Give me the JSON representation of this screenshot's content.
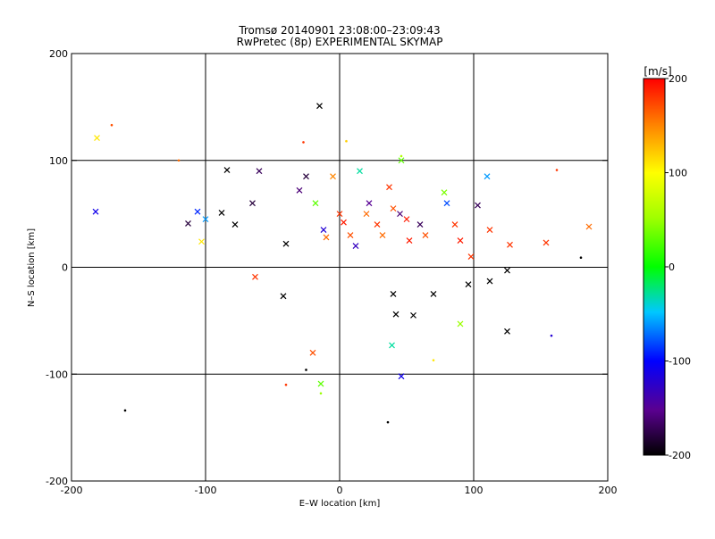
{
  "chart_data": {
    "type": "scatter",
    "title": "Tromsø 20140901 23:08:00–23:09:43",
    "subtitle": "RwPretec (8p) EXPERIMENTAL SKYMAP",
    "xlabel": "E–W location [km]",
    "ylabel": "N–S location [km]",
    "xlim": [
      -200,
      200
    ],
    "ylim": [
      -200,
      200
    ],
    "xticks": [
      -200,
      -100,
      0,
      100,
      200
    ],
    "yticks": [
      -200,
      -100,
      0,
      100,
      200
    ],
    "grid_lines_x": [
      -100,
      0,
      100
    ],
    "grid_lines_y": [
      -100,
      0,
      100
    ],
    "colorbar": {
      "label": "[m/s]",
      "min": -200,
      "max": 200,
      "ticks": [
        200,
        100,
        0,
        -100,
        -200
      ]
    },
    "marker_style": "small dots and crosses",
    "points": [
      {
        "x": -182,
        "y": 52,
        "v": -110,
        "m": "x"
      },
      {
        "x": -181,
        "y": 121,
        "v": 110,
        "m": "x"
      },
      {
        "x": -170,
        "y": 133,
        "v": 170,
        "m": "."
      },
      {
        "x": -160,
        "y": -134,
        "v": -200,
        "m": "."
      },
      {
        "x": -113,
        "y": 41,
        "v": -180,
        "m": "x"
      },
      {
        "x": -106,
        "y": 52,
        "v": -90,
        "m": "x"
      },
      {
        "x": -103,
        "y": 24,
        "v": 110,
        "m": "x"
      },
      {
        "x": -100,
        "y": 45,
        "v": -60,
        "m": "x"
      },
      {
        "x": -88,
        "y": 51,
        "v": -200,
        "m": "x"
      },
      {
        "x": -84,
        "y": 91,
        "v": -200,
        "m": "x"
      },
      {
        "x": -78,
        "y": 40,
        "v": -200,
        "m": "x"
      },
      {
        "x": -65,
        "y": 60,
        "v": -180,
        "m": "x"
      },
      {
        "x": -60,
        "y": 90,
        "v": -170,
        "m": "x"
      },
      {
        "x": -63,
        "y": -9,
        "v": 180,
        "m": "x"
      },
      {
        "x": -42,
        "y": -27,
        "v": -200,
        "m": "x"
      },
      {
        "x": -40,
        "y": 22,
        "v": -200,
        "m": "x"
      },
      {
        "x": -30,
        "y": 72,
        "v": -160,
        "m": "x"
      },
      {
        "x": -25,
        "y": 85,
        "v": -180,
        "m": "x"
      },
      {
        "x": -20,
        "y": -80,
        "v": 170,
        "m": "x"
      },
      {
        "x": -18,
        "y": 60,
        "v": 30,
        "m": "x"
      },
      {
        "x": -15,
        "y": 151,
        "v": -200,
        "m": "x"
      },
      {
        "x": -14,
        "y": -109,
        "v": 30,
        "m": "x"
      },
      {
        "x": -12,
        "y": 35,
        "v": -120,
        "m": "x"
      },
      {
        "x": -10,
        "y": 28,
        "v": 160,
        "m": "x"
      },
      {
        "x": -5,
        "y": 85,
        "v": 150,
        "m": "x"
      },
      {
        "x": 0,
        "y": 50,
        "v": 180,
        "m": "x"
      },
      {
        "x": 3,
        "y": 42,
        "v": 190,
        "m": "x"
      },
      {
        "x": 8,
        "y": 30,
        "v": 170,
        "m": "x"
      },
      {
        "x": 12,
        "y": 20,
        "v": -130,
        "m": "x"
      },
      {
        "x": 15,
        "y": 90,
        "v": -30,
        "m": "x"
      },
      {
        "x": 20,
        "y": 50,
        "v": 160,
        "m": "x"
      },
      {
        "x": 22,
        "y": 60,
        "v": -150,
        "m": "x"
      },
      {
        "x": 28,
        "y": 40,
        "v": 180,
        "m": "x"
      },
      {
        "x": 32,
        "y": 30,
        "v": 160,
        "m": "x"
      },
      {
        "x": 37,
        "y": 75,
        "v": 180,
        "m": "x"
      },
      {
        "x": 40,
        "y": 55,
        "v": 170,
        "m": "x"
      },
      {
        "x": 45,
        "y": 50,
        "v": -160,
        "m": "x"
      },
      {
        "x": 46,
        "y": 100,
        "v": 30,
        "m": "x"
      },
      {
        "x": 50,
        "y": 45,
        "v": 190,
        "m": "x"
      },
      {
        "x": 52,
        "y": 25,
        "v": 190,
        "m": "x"
      },
      {
        "x": 55,
        "y": -45,
        "v": -200,
        "m": "x"
      },
      {
        "x": 42,
        "y": -44,
        "v": -200,
        "m": "x"
      },
      {
        "x": 40,
        "y": -25,
        "v": -200,
        "m": "x"
      },
      {
        "x": 39,
        "y": -73,
        "v": -30,
        "m": "x"
      },
      {
        "x": 46,
        "y": -102,
        "v": -110,
        "m": "x"
      },
      {
        "x": 60,
        "y": 40,
        "v": -170,
        "m": "x"
      },
      {
        "x": 64,
        "y": 30,
        "v": 170,
        "m": "x"
      },
      {
        "x": 70,
        "y": -25,
        "v": -200,
        "m": "x"
      },
      {
        "x": 78,
        "y": 70,
        "v": 40,
        "m": "x"
      },
      {
        "x": 80,
        "y": 60,
        "v": -80,
        "m": "x"
      },
      {
        "x": 86,
        "y": 40,
        "v": 180,
        "m": "x"
      },
      {
        "x": 90,
        "y": 25,
        "v": 190,
        "m": "x"
      },
      {
        "x": 90,
        "y": -53,
        "v": 50,
        "m": "x"
      },
      {
        "x": 96,
        "y": -16,
        "v": -200,
        "m": "x"
      },
      {
        "x": 98,
        "y": 10,
        "v": 180,
        "m": "x"
      },
      {
        "x": 103,
        "y": 58,
        "v": -170,
        "m": "x"
      },
      {
        "x": 110,
        "y": 85,
        "v": -60,
        "m": "x"
      },
      {
        "x": 112,
        "y": 35,
        "v": 180,
        "m": "x"
      },
      {
        "x": 112,
        "y": -13,
        "v": -200,
        "m": "x"
      },
      {
        "x": 125,
        "y": -60,
        "v": -200,
        "m": "x"
      },
      {
        "x": 125,
        "y": -3,
        "v": -200,
        "m": "x"
      },
      {
        "x": 127,
        "y": 21,
        "v": 180,
        "m": "x"
      },
      {
        "x": 154,
        "y": 23,
        "v": 180,
        "m": "x"
      },
      {
        "x": 186,
        "y": 38,
        "v": 160,
        "m": "x"
      },
      {
        "x": 158,
        "y": -64,
        "v": -120,
        "m": "."
      },
      {
        "x": 162,
        "y": 91,
        "v": 180,
        "m": "."
      },
      {
        "x": 180,
        "y": 9,
        "v": -200,
        "m": "."
      },
      {
        "x": 36,
        "y": -145,
        "v": -200,
        "m": "."
      },
      {
        "x": -40,
        "y": -110,
        "v": 180,
        "m": "."
      },
      {
        "x": -25,
        "y": -96,
        "v": -200,
        "m": "."
      },
      {
        "x": -14,
        "y": -118,
        "v": 50,
        "m": "."
      },
      {
        "x": 70,
        "y": -87,
        "v": 110,
        "m": "."
      },
      {
        "x": -120,
        "y": 100,
        "v": 160,
        "m": "."
      },
      {
        "x": -27,
        "y": 117,
        "v": 180,
        "m": "."
      },
      {
        "x": 5,
        "y": 118,
        "v": 120,
        "m": "."
      },
      {
        "x": 46,
        "y": 104,
        "v": 60,
        "m": "."
      }
    ]
  }
}
